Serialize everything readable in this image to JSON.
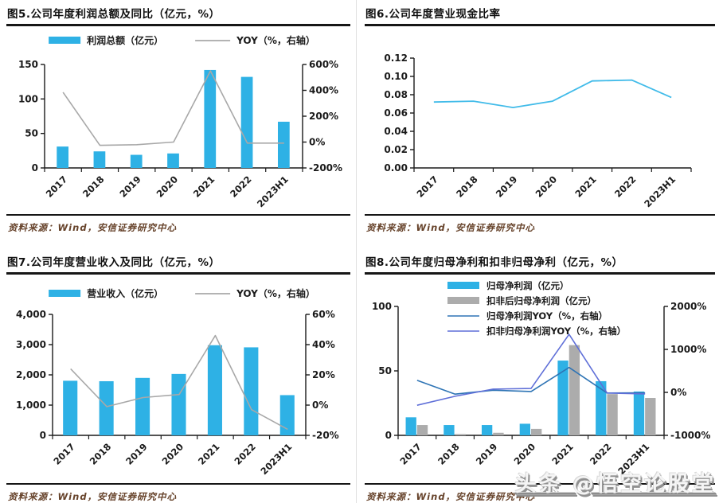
{
  "page": {
    "background": "#ffffff"
  },
  "watermark": {
    "text": "头条 @悟空论股堂"
  },
  "chart_data": [
    {
      "id": "fig5",
      "type": "bar+line",
      "title": "图5.公司年度利润总额及同比（亿元，%）",
      "source": "资料来源：Wind，安信证券研究中心",
      "categories": [
        "2017",
        "2018",
        "2019",
        "2020",
        "2021",
        "2022",
        "2023H1"
      ],
      "series": [
        {
          "name": "利润总额（亿元）",
          "type": "bar",
          "axis": "left",
          "color": "#2EB1E5",
          "values": [
            31,
            24,
            19,
            21,
            142,
            132,
            67
          ]
        },
        {
          "name": "YOY（%，右轴）",
          "type": "line",
          "axis": "right",
          "color": "#A8A8A8",
          "values": [
            385,
            -25,
            -20,
            0,
            550,
            -8,
            -8
          ]
        }
      ],
      "left_axis": {
        "min": 0,
        "max": 150,
        "ticks": [
          0,
          50,
          100,
          150
        ],
        "format": "int"
      },
      "right_axis": {
        "min": -200,
        "max": 600,
        "ticks": [
          -200,
          0,
          200,
          400,
          600
        ],
        "format": "pct"
      },
      "legend_position": "top",
      "grid": false
    },
    {
      "id": "fig6",
      "type": "line",
      "title": "图6.公司年度营业现金比率",
      "source": "资料来源：Wind，安信证券研究中心",
      "categories": [
        "2017",
        "2018",
        "2019",
        "2020",
        "2021",
        "2022",
        "2023H1"
      ],
      "series": [
        {
          "name": "营业现金比率",
          "type": "line",
          "axis": "left",
          "color": "#41BBE9",
          "values": [
            0.072,
            0.073,
            0.066,
            0.073,
            0.095,
            0.096,
            0.077
          ]
        }
      ],
      "left_axis": {
        "min": 0,
        "max": 0.12,
        "ticks": [
          0,
          0.02,
          0.04,
          0.06,
          0.08,
          0.1,
          0.12
        ],
        "format": "dec2"
      },
      "legend_position": "none",
      "grid": false
    },
    {
      "id": "fig7",
      "type": "bar+line",
      "title": "图7.公司年度营业收入及同比（亿元，%）",
      "source": "资料来源：Wind，安信证券研究中心",
      "categories": [
        "2017",
        "2018",
        "2019",
        "2020",
        "2021",
        "2022",
        "2023H1"
      ],
      "series": [
        {
          "name": "营业收入（亿元）",
          "type": "bar",
          "axis": "left",
          "color": "#2EB1E5",
          "values": [
            1805,
            1790,
            1900,
            2030,
            2980,
            2910,
            1330
          ]
        },
        {
          "name": "YOY（%，右轴）",
          "type": "line",
          "axis": "right",
          "color": "#A8A8A8",
          "values": [
            24,
            -1,
            5,
            7,
            46,
            -3,
            -16
          ]
        }
      ],
      "left_axis": {
        "min": 0,
        "max": 4000,
        "ticks": [
          0,
          1000,
          2000,
          3000,
          4000
        ],
        "format": "thousands"
      },
      "right_axis": {
        "min": -20,
        "max": 60,
        "ticks": [
          -20,
          0,
          20,
          40,
          60
        ],
        "format": "pct"
      },
      "legend_position": "top",
      "grid": false
    },
    {
      "id": "fig8",
      "type": "bar+line",
      "title": "图8.公司年度归母净利和扣非归母净利（亿元，%）",
      "source": "资料来源：Wind，安信证券研究中心",
      "categories": [
        "2017",
        "2018",
        "2019",
        "2020",
        "2021",
        "2022",
        "2023H1"
      ],
      "series": [
        {
          "name": "归母净利润（亿元）",
          "type": "bar",
          "axis": "left",
          "color": "#2EB1E5",
          "values": [
            14,
            8,
            8,
            9,
            58,
            42,
            34
          ]
        },
        {
          "name": "扣非后归母净利润（亿元）",
          "type": "bar",
          "axis": "left",
          "color": "#ACACAC",
          "values": [
            8,
            1,
            2,
            5,
            70,
            32,
            29
          ]
        },
        {
          "name": "归母净利润YOY（%，右轴）",
          "type": "line",
          "axis": "right",
          "color": "#2E74B5",
          "values": [
            280,
            -40,
            50,
            20,
            580,
            -15,
            -12
          ]
        },
        {
          "name": "扣非归母净利润YOY（%，右轴）",
          "type": "line",
          "axis": "right",
          "color": "#5F6FD8",
          "values": [
            -300,
            -90,
            75,
            90,
            1350,
            -15,
            -35
          ]
        }
      ],
      "left_axis": {
        "min": 0,
        "max": 100,
        "ticks": [
          0,
          50,
          100
        ],
        "format": "int"
      },
      "right_axis": {
        "min": -1000,
        "max": 2000,
        "ticks": [
          -1000,
          0,
          1000,
          2000
        ],
        "format": "pct"
      },
      "legend_position": "overlay",
      "grid": false
    }
  ]
}
